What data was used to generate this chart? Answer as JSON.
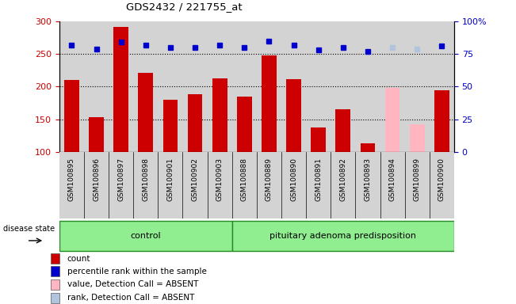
{
  "title": "GDS2432 / 221755_at",
  "samples": [
    "GSM100895",
    "GSM100896",
    "GSM100897",
    "GSM100898",
    "GSM100901",
    "GSM100902",
    "GSM100903",
    "GSM100888",
    "GSM100889",
    "GSM100890",
    "GSM100891",
    "GSM100892",
    "GSM100893",
    "GSM100894",
    "GSM100899",
    "GSM100900"
  ],
  "bar_values": [
    210,
    153,
    291,
    221,
    180,
    189,
    213,
    185,
    248,
    211,
    137,
    165,
    113,
    198,
    142,
    195
  ],
  "bar_colors": [
    "#cc0000",
    "#cc0000",
    "#cc0000",
    "#cc0000",
    "#cc0000",
    "#cc0000",
    "#cc0000",
    "#cc0000",
    "#cc0000",
    "#cc0000",
    "#cc0000",
    "#cc0000",
    "#cc0000",
    "#ffb6c1",
    "#ffb6c1",
    "#cc0000"
  ],
  "rank_values": [
    82,
    79,
    84,
    82,
    80,
    80,
    82,
    80,
    85,
    82,
    78,
    80,
    77,
    80,
    79,
    81
  ],
  "rank_colors": [
    "#0000cc",
    "#0000cc",
    "#0000cc",
    "#0000cc",
    "#0000cc",
    "#0000cc",
    "#0000cc",
    "#0000cc",
    "#0000cc",
    "#0000cc",
    "#0000cc",
    "#0000cc",
    "#0000cc",
    "#b0c4de",
    "#b0c4de",
    "#0000cc"
  ],
  "absent_mask": [
    false,
    false,
    false,
    false,
    false,
    false,
    false,
    false,
    false,
    false,
    false,
    false,
    false,
    true,
    true,
    false
  ],
  "control_count": 7,
  "group_labels": [
    "control",
    "pituitary adenoma predisposition"
  ],
  "ylim_left": [
    100,
    300
  ],
  "ylim_right": [
    0,
    100
  ],
  "yticks_left": [
    100,
    150,
    200,
    250,
    300
  ],
  "yticks_right": [
    0,
    25,
    50,
    75,
    100
  ],
  "background_color": "#d3d3d3",
  "bar_width": 0.6,
  "legend_items": [
    {
      "label": "count",
      "color": "#cc0000"
    },
    {
      "label": "percentile rank within the sample",
      "color": "#0000cc"
    },
    {
      "label": "value, Detection Call = ABSENT",
      "color": "#ffb6c1"
    },
    {
      "label": "rank, Detection Call = ABSENT",
      "color": "#b0c4de"
    }
  ]
}
